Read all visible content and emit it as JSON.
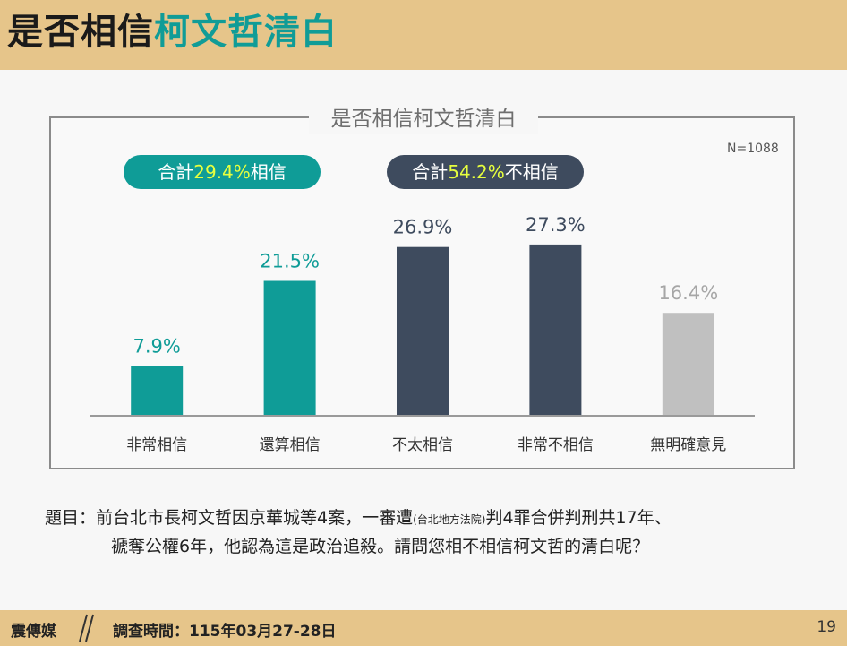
{
  "header": {
    "title_part1": "是否相信",
    "title_part2": "柯文哲清白"
  },
  "chart_data": {
    "type": "bar",
    "title": "是否相信柯文哲清白",
    "sample_size": "N=1088",
    "categories": [
      "非常相信",
      "還算相信",
      "不太相信",
      "非常不相信",
      "無明確意見"
    ],
    "values": [
      7.9,
      21.5,
      26.9,
      27.3,
      16.4
    ],
    "value_labels": [
      "7.9%",
      "21.5%",
      "26.9%",
      "27.3%",
      "16.4%"
    ],
    "bar_colors": [
      "#0f9c97",
      "#0f9c97",
      "#3e4b5e",
      "#3e4b5e",
      "#c0c0c0"
    ],
    "label_colors": [
      "#0f9c97",
      "#0f9c97",
      "#3e4b5e",
      "#3e4b5e",
      "#a6a6a6"
    ],
    "ylim": [
      0,
      30
    ],
    "grid": false,
    "summaries": {
      "believe": {
        "prefix": "合計",
        "value": "29.4%",
        "suffix": "相信",
        "color": "#0f9c97"
      },
      "disbelieve": {
        "prefix": "合計",
        "value": "54.2%",
        "suffix": "不相信",
        "color": "#3e4b5e"
      }
    }
  },
  "question": {
    "line1_a": "題目：前台北市長柯文哲因京華城等4案，一審遭",
    "line1_small": "(台北地方法院)",
    "line1_b": "判4罪合併判刑共17年、",
    "line2": "褫奪公權6年，他認為這是政治追殺。請問您相不相信柯文哲的清白呢？"
  },
  "footer": {
    "brand": "震傳媒",
    "date": "調查時間：115年03月27-28日",
    "page": "19"
  }
}
